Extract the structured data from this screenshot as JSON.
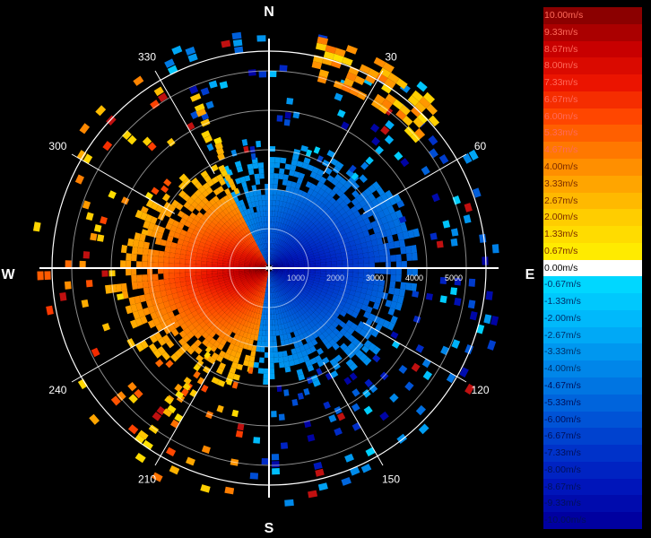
{
  "chart_data": {
    "type": "polar-velocity-ppi",
    "cardinals": [
      "N",
      "E",
      "S",
      "W"
    ],
    "azimuth_labels": [
      "30",
      "60",
      "120",
      "150",
      "210",
      "240",
      "300",
      "330"
    ],
    "range_labels": [
      "1000",
      "2000",
      "3000",
      "4000",
      "5000"
    ],
    "range_max": 5500,
    "velocity_scale": {
      "unit": "m/s",
      "colors": [
        "#8B0000",
        "#A00000",
        "#B80000",
        "#D00000",
        "#E80000",
        "#FF1A00",
        "#FF4400",
        "#FF6600",
        "#FF8000",
        "#FF9A00",
        "#FFB000",
        "#FFC800",
        "#FFDD00",
        "#FFF000",
        "#FFFFFF",
        "#00D8FF",
        "#00C4FF",
        "#00B0F8",
        "#009CF0",
        "#0088E8",
        "#0074E0",
        "#0060D8",
        "#004CD0",
        "#0038C8",
        "#0024C0",
        "#0010B8",
        "#0000B0",
        "#00009C",
        "#000088"
      ],
      "labels": [
        "10.00m/s",
        "9.33m/s",
        "8.67m/s",
        "8.00m/s",
        "7.33m/s",
        "6.67m/s",
        "6.00m/s",
        "5.33m/s",
        "4.67m/s",
        "4.00m/s",
        "3.33m/s",
        "2.67m/s",
        "2.00m/s",
        "1.33m/s",
        "0.67m/s",
        "0.00m/s",
        "-0.67m/s",
        "-1.33m/s",
        "-2.00m/s",
        "-2.67m/s",
        "-3.33m/s",
        "-4.00m/s",
        "-4.67m/s",
        "-5.33m/s",
        "-6.00m/s",
        "-6.67m/s",
        "-7.33m/s",
        "-8.00m/s",
        "-8.67m/s",
        "-9.33m/s",
        "-10.00m/s"
      ]
    }
  }
}
